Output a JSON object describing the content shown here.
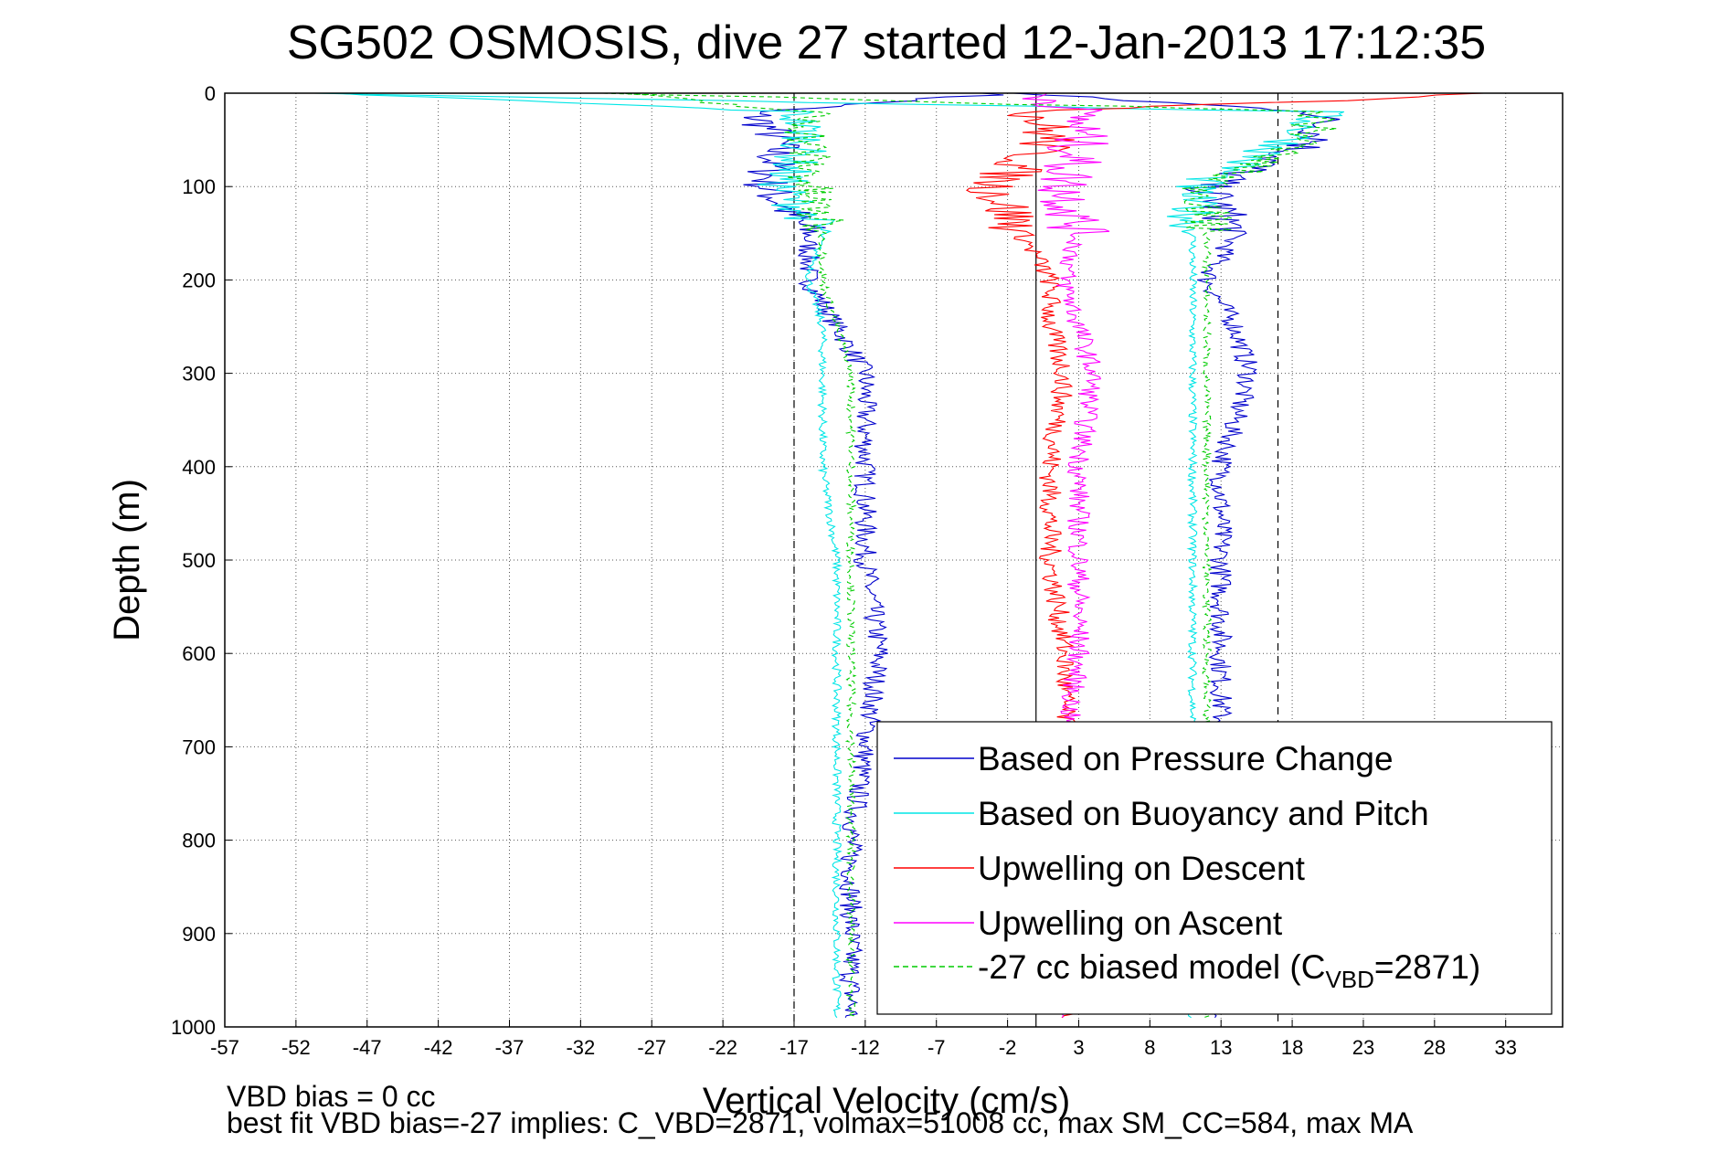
{
  "chart_data": {
    "type": "line",
    "title": "SG502 OSMOSIS, dive 27 started 12-Jan-2013 17:12:35",
    "xlabel": "Vertical Velocity (cm/s)",
    "ylabel": "Depth (m)",
    "xlim": [
      -57,
      37
    ],
    "ylim": [
      0,
      1000
    ],
    "y_reversed": true,
    "grid": true,
    "x_ticks": [
      "-57",
      "-52",
      "-47",
      "-42",
      "-37",
      "-32",
      "-27",
      "-22",
      "-17",
      "-12",
      "-7",
      "-2",
      "3",
      "8",
      "13",
      "18",
      "23",
      "28",
      "33"
    ],
    "y_ticks": [
      "0",
      "100",
      "200",
      "300",
      "400",
      "500",
      "600",
      "700",
      "800",
      "900",
      "1000"
    ],
    "reference_lines": {
      "solid_x": 0,
      "dashed_x": [
        -17,
        17
      ]
    },
    "legend_position": "bottom-right",
    "legend": {
      "entries": [
        {
          "label": "Based on Pressure Change",
          "color": "#0000cc",
          "style": "solid"
        },
        {
          "label": "Based on Buoyancy and Pitch",
          "color": "#00e6e6",
          "style": "solid"
        },
        {
          "label": "Upwelling on Descent",
          "color": "#ff0000",
          "style": "solid"
        },
        {
          "label": "Upwelling on Ascent",
          "color": "#ff00ff",
          "style": "solid"
        },
        {
          "label_pre": "-27 cc biased model (C",
          "label_sub": "VBD",
          "label_post": "=2871)",
          "color": "#00cc00",
          "style": "dashed"
        }
      ]
    },
    "series": [
      {
        "name": "Based on Pressure Change",
        "color": "#0000cc",
        "depth": [
          0,
          20,
          50,
          100,
          150,
          200,
          250,
          300,
          400,
          500,
          600,
          700,
          800,
          900,
          990
        ],
        "descent": [
          -2,
          -20,
          -18,
          -19,
          -16,
          -16,
          -14,
          -12,
          -12,
          -12,
          -11,
          -12,
          -13,
          -13,
          -13
        ],
        "ascent": [
          -2,
          20,
          20,
          12,
          14,
          12,
          14,
          15,
          13,
          13,
          13,
          13,
          12,
          12,
          12
        ]
      },
      {
        "name": "Based on Buoyancy and Pitch",
        "color": "#00e6e6",
        "depth": [
          0,
          20,
          50,
          100,
          150,
          200,
          250,
          300,
          400,
          500,
          600,
          700,
          800,
          900,
          990
        ],
        "descent": [
          -50,
          -17,
          -16,
          -18,
          -15,
          -16,
          -15,
          -15,
          -15,
          -14,
          -14,
          -14,
          -14,
          -14,
          -14
        ],
        "ascent": [
          -50,
          20,
          18,
          11,
          11,
          11,
          11,
          11,
          11,
          11,
          11,
          11,
          11,
          11,
          11
        ]
      },
      {
        "name": "Upwelling on Descent",
        "color": "#ff0000",
        "depth": [
          0,
          20,
          50,
          100,
          150,
          200,
          250,
          300,
          400,
          500,
          600,
          700,
          800,
          900,
          990
        ],
        "values": [
          33,
          0,
          1,
          -3,
          -1,
          1,
          1,
          2,
          1,
          1,
          2,
          2,
          2,
          2,
          2
        ]
      },
      {
        "name": "Upwelling on Ascent",
        "color": "#ff00ff",
        "depth": [
          0,
          20,
          50,
          100,
          150,
          200,
          250,
          300,
          400,
          500,
          600,
          700,
          800,
          900,
          990
        ],
        "values": [
          0,
          3,
          3,
          2,
          3,
          2,
          3,
          4,
          3,
          3,
          3,
          2,
          2,
          2,
          2
        ]
      },
      {
        "name": "-27 cc biased model (CVBD=2871)",
        "color": "#00cc00",
        "depth": [
          0,
          20,
          50,
          100,
          150,
          200,
          250,
          300,
          400,
          500,
          600,
          700,
          800,
          900,
          990
        ],
        "descent": [
          -30,
          -16,
          -16,
          -16,
          -15,
          -15,
          -14,
          -13,
          -13,
          -13,
          -13,
          -13,
          -13,
          -13,
          -13
        ],
        "ascent": [
          -30,
          20,
          19,
          12,
          12,
          12,
          12,
          12,
          12,
          12,
          12,
          12,
          12,
          12,
          12
        ]
      }
    ],
    "footer_lines": [
      "VBD bias = 0 cc",
      "best fit VBD bias=-27 implies: C_VBD=2871, volmax=51008 cc, max SM_CC=584, max MA"
    ]
  }
}
